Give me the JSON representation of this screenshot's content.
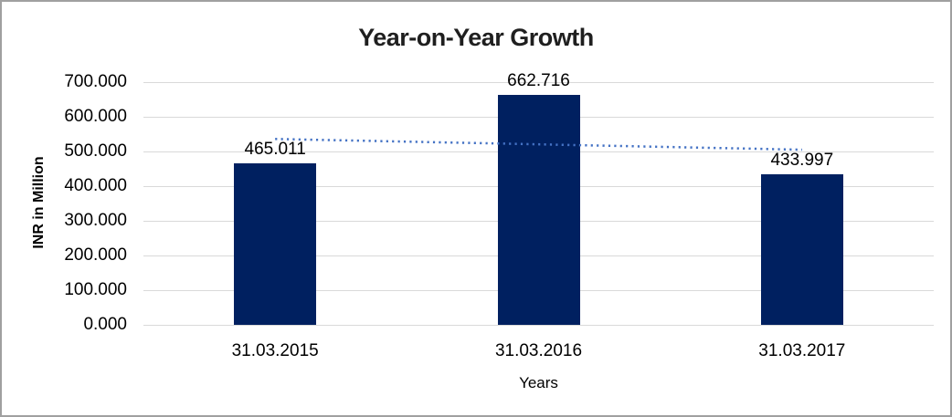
{
  "frame": {
    "background": "#ffffff",
    "border_color": "#a0a0a0"
  },
  "chart_data": {
    "type": "bar",
    "title": "Year-on-Year Growth",
    "xlabel": "Years",
    "ylabel": "INR in Million",
    "categories": [
      "31.03.2015",
      "31.03.2016",
      "31.03.2017"
    ],
    "values": [
      465.011,
      662.716,
      433.997
    ],
    "data_labels": [
      "465.011",
      "662.716",
      "433.997"
    ],
    "y_ticks": [
      {
        "value": 0,
        "label": "0.000"
      },
      {
        "value": 100,
        "label": "100.000"
      },
      {
        "value": 200,
        "label": "200.000"
      },
      {
        "value": 300,
        "label": "300.000"
      },
      {
        "value": 400,
        "label": "400.000"
      },
      {
        "value": 500,
        "label": "500.000"
      },
      {
        "value": 600,
        "label": "600.000"
      },
      {
        "value": 700,
        "label": "700.000"
      }
    ],
    "ylim": [
      0,
      700
    ],
    "grid": true,
    "legend": "none",
    "colors": {
      "bar": "#002060",
      "trendline": "#4472c4",
      "gridline": "#d9d9d9",
      "text": "#000000",
      "title_text": "#1f1f1f"
    },
    "trendline": {
      "type": "linear",
      "line_style": "dotted",
      "color": "#4472c4",
      "start_value": 536.08,
      "end_value": 505.07
    }
  }
}
